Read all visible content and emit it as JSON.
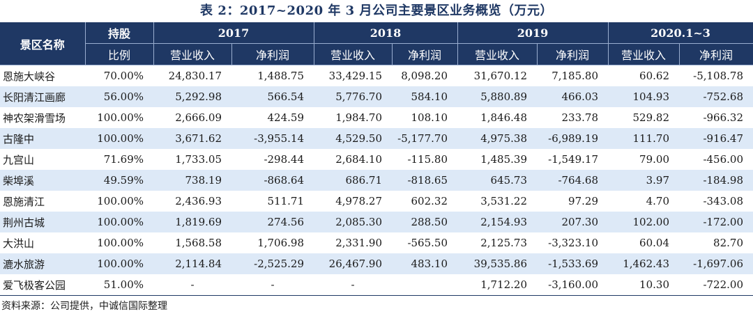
{
  "title": "表 2：2017~2020 年 3 月公司主要景区业务概览（万元）",
  "header": {
    "name_col": "景区名称",
    "share_col_line1": "持股",
    "share_col_line2": "比例",
    "years": [
      "2017",
      "2018",
      "2019",
      "2020.1~3"
    ],
    "revenue_label": "营业收入",
    "profit_label": "净利润"
  },
  "rows": [
    {
      "name": "恩施大峡谷",
      "share": "70.00%",
      "values": [
        "24,830.17",
        "1,488.75",
        "33,429.15",
        "8,098.20",
        "31,670.12",
        "7,185.80",
        "60.62",
        "-5,108.78"
      ]
    },
    {
      "name": "长阳清江画廊",
      "share": "56.00%",
      "values": [
        "5,292.98",
        "566.54",
        "5,776.70",
        "584.10",
        "5,880.89",
        "466.03",
        "104.93",
        "-752.68"
      ]
    },
    {
      "name": "神农架滑雪场",
      "share": "100.00%",
      "values": [
        "2,666.09",
        "424.59",
        "1,984.70",
        "108.10",
        "1,846.48",
        "233.78",
        "529.82",
        "-966.32"
      ]
    },
    {
      "name": "古隆中",
      "share": "100.00%",
      "values": [
        "3,671.62",
        "-3,955.14",
        "4,529.50",
        "-5,177.70",
        "4,975.38",
        "-6,989.19",
        "111.70",
        "-916.47"
      ]
    },
    {
      "name": "九宫山",
      "share": "71.69%",
      "values": [
        "1,733.05",
        "-298.44",
        "2,684.10",
        "-115.80",
        "1,485.39",
        "-1,549.17",
        "79.00",
        "-456.00"
      ]
    },
    {
      "name": "柴埠溪",
      "share": "49.59%",
      "values": [
        "738.19",
        "-868.64",
        "686.71",
        "-818.65",
        "645.73",
        "-764.68",
        "3.97",
        "-184.98"
      ]
    },
    {
      "name": "恩施清江",
      "share": "100.00%",
      "values": [
        "2,436.93",
        "511.71",
        "4,978.27",
        "602.32",
        "3,531.22",
        "97.29",
        "4.70",
        "-343.08"
      ]
    },
    {
      "name": "荆州古城",
      "share": "100.00%",
      "values": [
        "1,819.69",
        "274.56",
        "2,085.30",
        "288.50",
        "2,154.93",
        "207.30",
        "102.00",
        "-172.00"
      ]
    },
    {
      "name": "大洪山",
      "share": "100.00%",
      "values": [
        "1,568.58",
        "1,706.98",
        "2,331.90",
        "-565.50",
        "2,125.73",
        "-3,323.10",
        "60.04",
        "82.70"
      ]
    },
    {
      "name": "漉水旅游",
      "share": "100.00%",
      "values": [
        "2,114.84",
        "-2,525.29",
        "26,467.90",
        "483.10",
        "39,535.86",
        "-1,533.69",
        "1,462.43",
        "-1,697.06"
      ]
    },
    {
      "name": "爱飞极客公园",
      "share": "51.00%",
      "values": [
        "-",
        "-",
        "-",
        "",
        "1,712.20",
        "-3,160.00",
        "10.30",
        "-722.00"
      ]
    }
  ],
  "source": "资料来源：公司提供，中诚信国际整理"
}
